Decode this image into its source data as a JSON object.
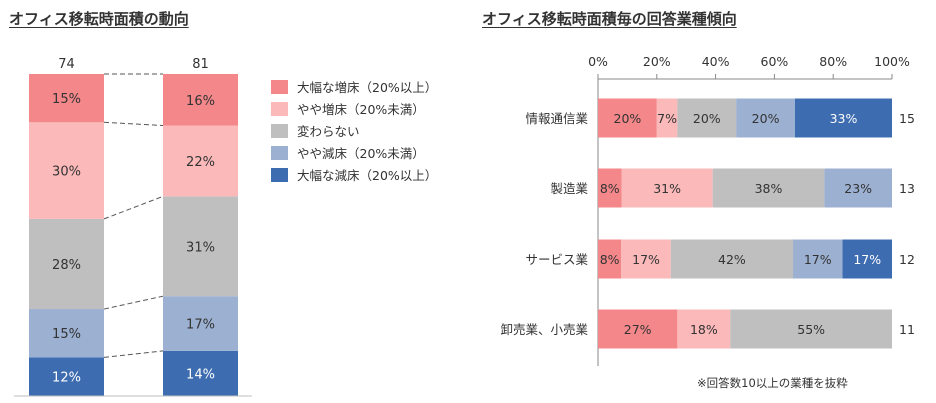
{
  "colors": {
    "large_increase": "#f4878a",
    "small_increase": "#fbb9ba",
    "unchanged": "#bfbfbf",
    "small_decrease": "#9cb0d2",
    "large_decrease": "#3d6cb0"
  },
  "chart_data": [
    {
      "type": "bar",
      "stacked": true,
      "orientation": "vertical",
      "title": "オフィス移転時面積の動向",
      "categories": [
        "74",
        "81"
      ],
      "series": [
        {
          "name": "大幅な減床（20%以上）",
          "values": [
            12,
            14
          ],
          "labels": [
            "12%",
            "14%"
          ],
          "color_key": "large_decrease"
        },
        {
          "name": "やや減床（20%未満）",
          "values": [
            15,
            17
          ],
          "labels": [
            "15%",
            "17%"
          ],
          "color_key": "small_decrease"
        },
        {
          "name": "変わらない",
          "values": [
            28,
            31
          ],
          "labels": [
            "28%",
            "31%"
          ],
          "color_key": "unchanged"
        },
        {
          "name": "やや増床（20%未満）",
          "values": [
            30,
            22
          ],
          "labels": [
            "30%",
            "22%"
          ],
          "color_key": "small_increase"
        },
        {
          "name": "大幅な増床（20%以上）",
          "values": [
            15,
            16
          ],
          "labels": [
            "15%",
            "16%"
          ],
          "color_key": "large_increase"
        }
      ],
      "legend": {
        "position": "right",
        "entries": [
          {
            "label": "大幅な増床（20%以上）",
            "color_key": "large_increase"
          },
          {
            "label": "やや増床（20%未満）",
            "color_key": "small_increase"
          },
          {
            "label": "変わらない",
            "color_key": "unchanged"
          },
          {
            "label": "やや減床（20%未満）",
            "color_key": "small_decrease"
          },
          {
            "label": "大幅な減床（20%以上）",
            "color_key": "large_decrease"
          }
        ]
      }
    },
    {
      "type": "bar",
      "stacked": true,
      "orientation": "horizontal",
      "title": "オフィス移転時面積毎の回答業種傾向",
      "xlim": [
        0,
        100
      ],
      "x_ticks": [
        "0%",
        "20%",
        "40%",
        "60%",
        "80%",
        "100%"
      ],
      "categories": [
        "情報通信業",
        "製造業",
        "サービス業",
        "卸売業、小売業"
      ],
      "counts": [
        "15",
        "13",
        "12",
        "11"
      ],
      "series": [
        {
          "name": "大幅な増床（20%以上）",
          "values": [
            20,
            8,
            8,
            27
          ],
          "labels": [
            "20%",
            "8%",
            "8%",
            "27%"
          ],
          "color_key": "large_increase"
        },
        {
          "name": "やや増床（20%未満）",
          "values": [
            7,
            31,
            17,
            18
          ],
          "labels": [
            "7%",
            "31%",
            "17%",
            "18%"
          ],
          "color_key": "small_increase"
        },
        {
          "name": "変わらない",
          "values": [
            20,
            38,
            42,
            55
          ],
          "labels": [
            "20%",
            "38%",
            "42%",
            "55%"
          ],
          "color_key": "unchanged"
        },
        {
          "name": "やや減床（20%未満）",
          "values": [
            20,
            23,
            17,
            0
          ],
          "labels": [
            "20%",
            "23%",
            "17%",
            ""
          ],
          "color_key": "small_decrease"
        },
        {
          "name": "大幅な減床（20%以上）",
          "values": [
            33,
            0,
            17,
            0
          ],
          "labels": [
            "33%",
            "",
            "17%",
            ""
          ],
          "color_key": "large_decrease"
        }
      ],
      "note": "※回答数10以上の業種を抜粋"
    }
  ]
}
